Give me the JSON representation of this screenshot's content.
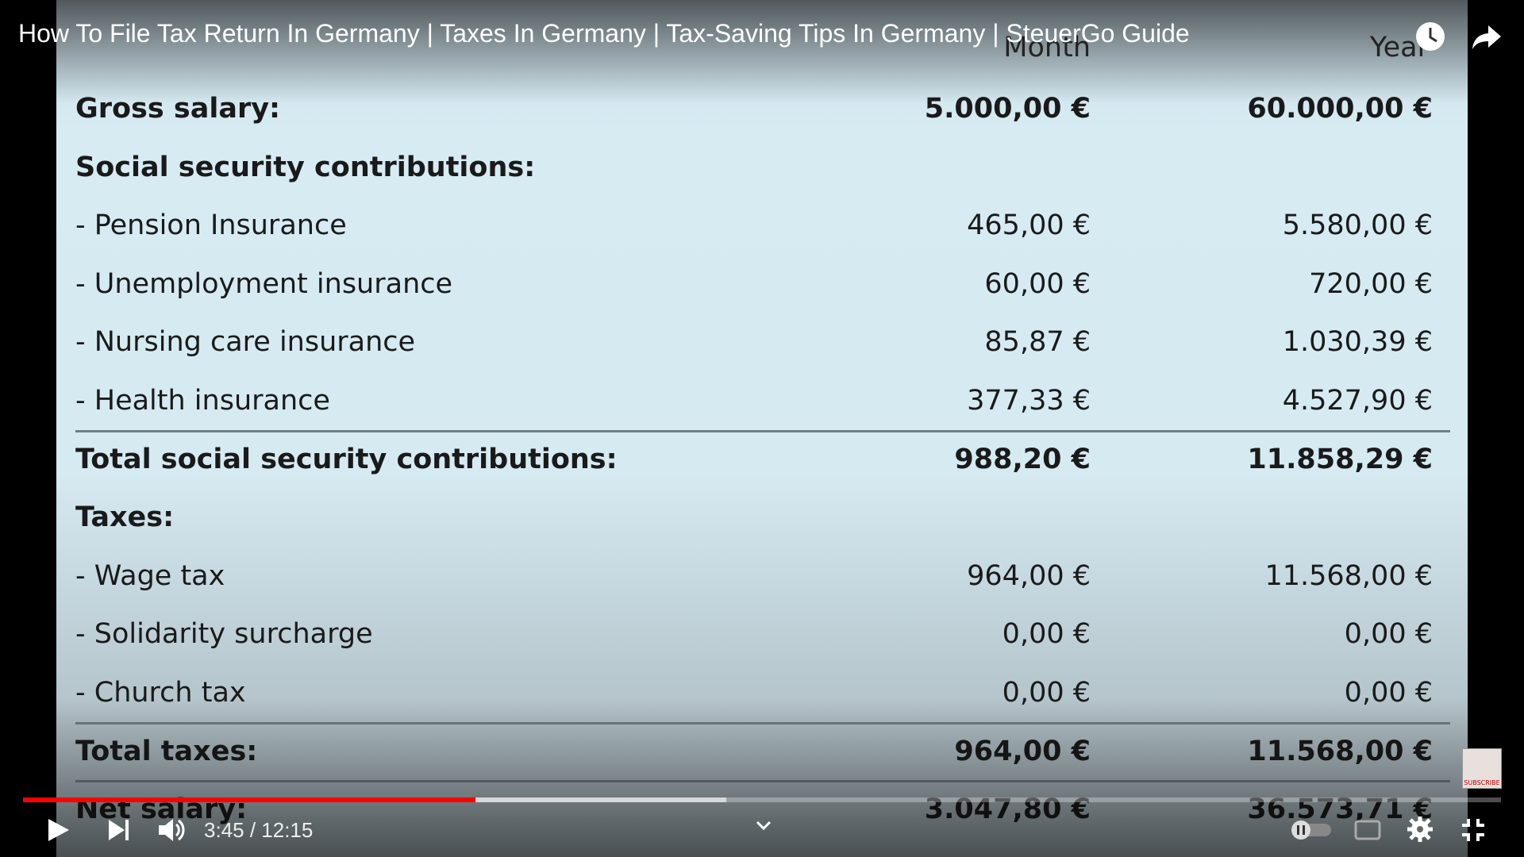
{
  "video": {
    "title": "How To File Tax Return In Germany | Taxes In Germany | Tax-Saving Tips In Germany | SteuerGo Guide",
    "time": "3:45 / 12:15",
    "badge": "SUBSCRIBE"
  },
  "table": {
    "columns": [
      "Month",
      "Year"
    ],
    "rows": [
      {
        "label": "Gross salary:",
        "month": "5.000,00 €",
        "year": "60.000,00 €",
        "bold": true
      },
      {
        "label": "Social security contributions:",
        "bold": true
      },
      {
        "label": "- Pension Insurance",
        "month": "465,00 €",
        "year": "5.580,00 €"
      },
      {
        "label": "- Unemployment insurance",
        "month": "60,00 €",
        "year": "720,00 €"
      },
      {
        "label": "- Nursing care insurance",
        "month": "85,87 €",
        "year": "1.030,39 €"
      },
      {
        "label": "- Health insurance",
        "month": "377,33 €",
        "year": "4.527,90 €"
      },
      {
        "label": "Total social security contributions:",
        "month": "988,20 €",
        "year": "11.858,29 €",
        "bold": true,
        "divider_above": true
      },
      {
        "label": "Taxes:",
        "bold": true
      },
      {
        "label": "- Wage tax",
        "month": "964,00 €",
        "year": "11.568,00 €"
      },
      {
        "label": "- Solidarity surcharge",
        "month": "0,00 €",
        "year": "0,00 €"
      },
      {
        "label": "- Church tax",
        "month": "0,00 €",
        "year": "0,00 €"
      },
      {
        "label": "Total taxes:",
        "month": "964,00 €",
        "year": "11.568,00 €",
        "bold": true,
        "divider_above": true
      },
      {
        "label": "Net salary:",
        "month": "3.047,80 €",
        "year": "36.573,71 €",
        "bold": true,
        "divider_above": true
      }
    ]
  }
}
